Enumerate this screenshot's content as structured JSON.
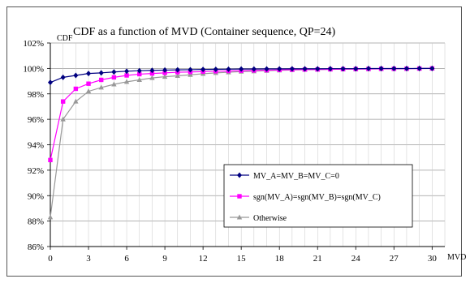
{
  "chart_data": {
    "type": "line",
    "title": "CDF as a function of MVD (Container sequence, QP=24)",
    "xlabel": "MVD",
    "ylabel": "CDF",
    "xlim": [
      0,
      31
    ],
    "ylim": [
      86,
      102
    ],
    "x_ticks": [
      0,
      3,
      6,
      9,
      12,
      15,
      18,
      21,
      24,
      27,
      30
    ],
    "y_ticks": [
      86,
      88,
      90,
      92,
      94,
      96,
      98,
      100,
      102
    ],
    "y_tick_suffix": "%",
    "grid": true,
    "legend_position": "bottom-right",
    "x": [
      0,
      1,
      2,
      3,
      4,
      5,
      6,
      7,
      8,
      9,
      10,
      11,
      12,
      13,
      14,
      15,
      16,
      17,
      18,
      19,
      20,
      21,
      22,
      23,
      24,
      25,
      26,
      27,
      28,
      29,
      30
    ],
    "series": [
      {
        "name": "MV_A=MV_B=MV_C=0",
        "color": "#000080",
        "marker": "diamond",
        "values": [
          98.9,
          99.3,
          99.45,
          99.6,
          99.65,
          99.72,
          99.78,
          99.82,
          99.85,
          99.87,
          99.89,
          99.9,
          99.92,
          99.93,
          99.94,
          99.95,
          99.95,
          99.96,
          99.96,
          99.97,
          99.97,
          99.97,
          99.98,
          99.98,
          99.98,
          99.99,
          99.99,
          99.99,
          99.99,
          100.0,
          100.0
        ]
      },
      {
        "name": "sgn(MV_A)=sgn(MV_B)=sgn(MV_C)",
        "color": "#ff00ff",
        "marker": "square",
        "values": [
          92.8,
          97.4,
          98.4,
          98.8,
          99.1,
          99.3,
          99.45,
          99.55,
          99.6,
          99.65,
          99.7,
          99.72,
          99.75,
          99.78,
          99.8,
          99.82,
          99.84,
          99.86,
          99.88,
          99.9,
          99.91,
          99.92,
          99.93,
          99.94,
          99.95,
          99.96,
          99.97,
          99.97,
          99.98,
          99.99,
          100.0
        ]
      },
      {
        "name": "Otherwise",
        "color": "#999999",
        "marker": "triangle",
        "values": [
          88.3,
          96.0,
          97.4,
          98.2,
          98.5,
          98.75,
          98.95,
          99.1,
          99.25,
          99.35,
          99.42,
          99.5,
          99.58,
          99.65,
          99.7,
          99.75,
          99.78,
          99.82,
          99.85,
          99.88,
          99.9,
          99.91,
          99.93,
          99.94,
          99.95,
          99.96,
          99.97,
          99.98,
          99.98,
          99.99,
          100.0
        ]
      }
    ]
  }
}
